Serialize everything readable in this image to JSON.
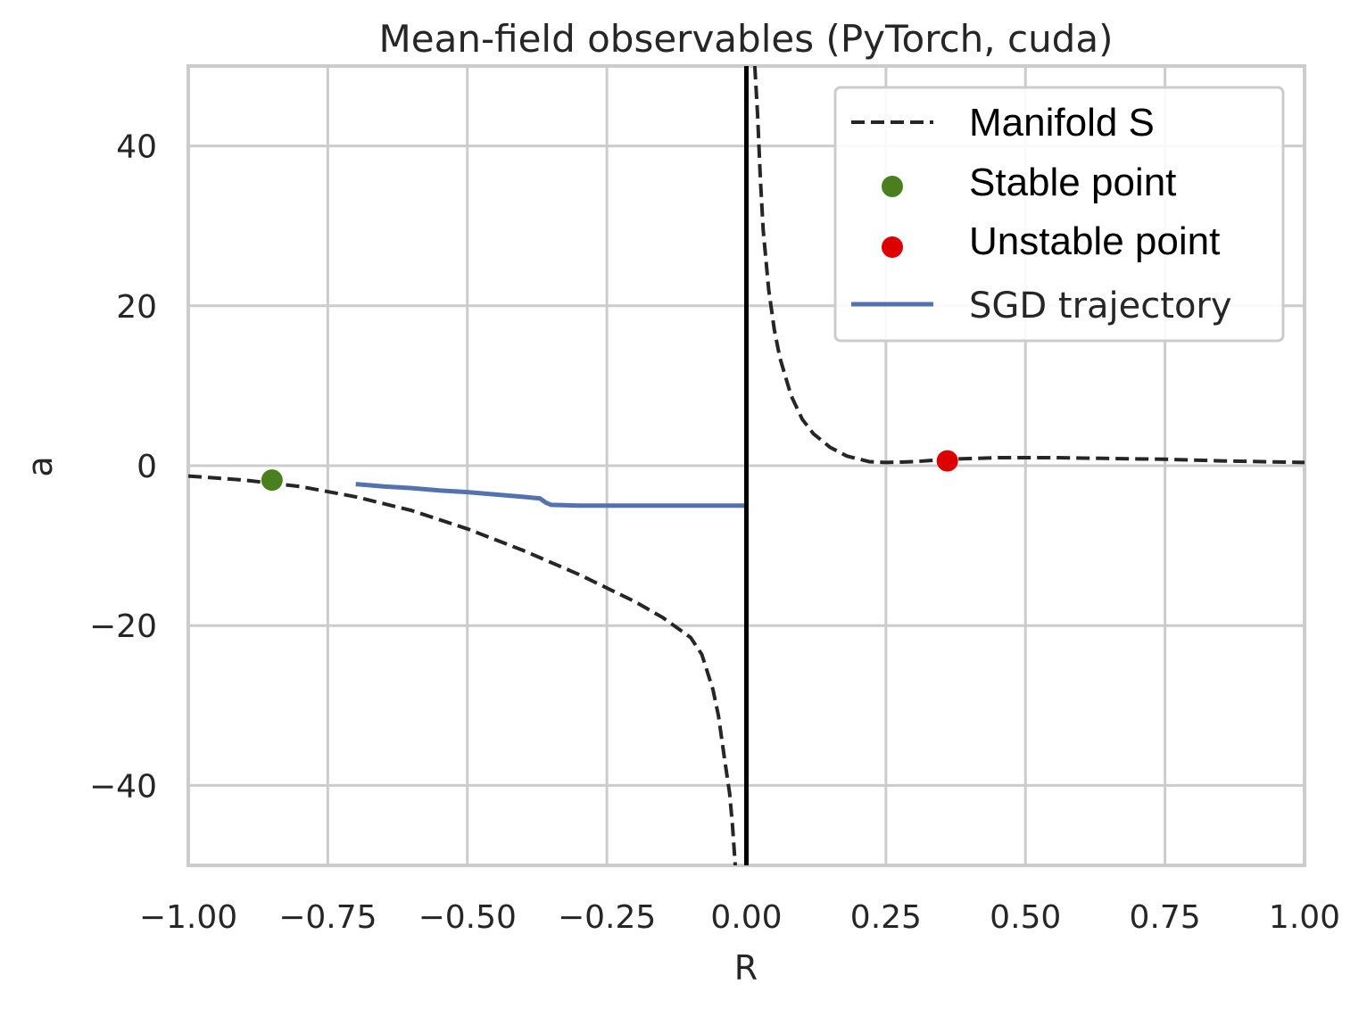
{
  "chart_data": {
    "type": "line",
    "title": "Mean-field observables (PyTorch, cuda)",
    "xlabel": "R",
    "ylabel": "a",
    "xlim": [
      -1.0,
      1.0
    ],
    "ylim": [
      -50,
      50
    ],
    "grid": true,
    "x_ticks": [
      -1.0,
      -0.75,
      -0.5,
      -0.25,
      0.0,
      0.25,
      0.5,
      0.75,
      1.0
    ],
    "x_tick_labels": [
      "−1.00",
      "−0.75",
      "−0.50",
      "−0.25",
      "0.00",
      "0.25",
      "0.50",
      "0.75",
      "1.00"
    ],
    "y_ticks": [
      -40,
      -20,
      0,
      20,
      40
    ],
    "y_tick_labels": [
      "−40",
      "−20",
      "0",
      "20",
      "40"
    ],
    "vertical_line_x": 0.0,
    "legend_position": "upper-right",
    "colors": {
      "manifold": "#262626",
      "stable": "#4a7f1f",
      "unstable": "#dd0000",
      "sgd": "#5572b0",
      "grid": "#cccccc",
      "spine": "#cccccc",
      "vline": "#000000"
    },
    "series": [
      {
        "name": "Manifold S",
        "style": "dashed",
        "x": [
          -1.0,
          -0.9,
          -0.8,
          -0.7,
          -0.6,
          -0.5,
          -0.4,
          -0.3,
          -0.2,
          -0.15,
          -0.1,
          -0.08,
          -0.06,
          -0.05,
          -0.04,
          -0.03,
          -0.025,
          -0.02
        ],
        "y": [
          -1.3,
          -1.8,
          -2.6,
          -3.9,
          -5.6,
          -7.9,
          -10.6,
          -13.6,
          -17.0,
          -19.0,
          -21.5,
          -23.6,
          -28.0,
          -31.3,
          -36.3,
          -41.0,
          -45.0,
          -50.0
        ]
      },
      {
        "name": "Manifold S",
        "style": "dashed",
        "x": [
          0.015,
          0.02,
          0.025,
          0.03,
          0.04,
          0.05,
          0.06,
          0.08,
          0.1,
          0.12,
          0.15,
          0.18,
          0.22,
          0.25,
          0.3,
          0.36,
          0.45,
          0.55,
          0.65,
          0.75,
          0.85,
          1.0
        ],
        "y": [
          50.0,
          44.0,
          36.0,
          29.5,
          22.0,
          17.0,
          13.5,
          8.8,
          5.8,
          4.0,
          2.3,
          1.2,
          0.5,
          0.4,
          0.5,
          0.8,
          1.0,
          1.0,
          0.9,
          0.8,
          0.6,
          0.4
        ]
      },
      {
        "name": "SGD trajectory",
        "style": "solid",
        "x": [
          -0.7,
          -0.65,
          -0.6,
          -0.55,
          -0.5,
          -0.45,
          -0.4,
          -0.37,
          -0.36,
          -0.35,
          -0.3,
          -0.2,
          -0.1,
          0.0
        ],
        "y": [
          -2.3,
          -2.6,
          -2.8,
          -3.1,
          -3.3,
          -3.6,
          -3.9,
          -4.1,
          -4.6,
          -4.9,
          -5.0,
          -5.0,
          -5.0,
          -5.0
        ]
      }
    ],
    "points": [
      {
        "name": "Stable point",
        "x": -0.85,
        "y": -1.8
      },
      {
        "name": "Unstable point",
        "x": 0.36,
        "y": 0.6
      }
    ],
    "legend": [
      "Manifold S",
      "Stable point",
      "Unstable point",
      "SGD trajectory"
    ]
  }
}
